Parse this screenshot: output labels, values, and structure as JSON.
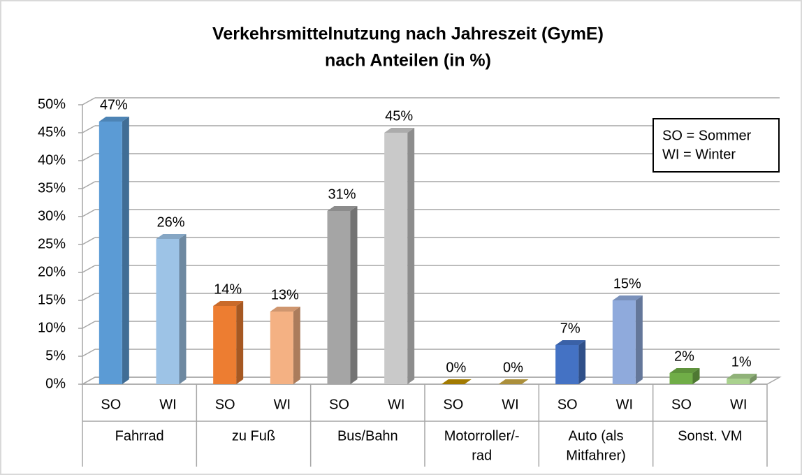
{
  "chart_data": {
    "type": "bar3d",
    "title": [
      "Verkehrsmittelnutzung nach Jahreszeit (GymE)",
      "nach Anteilen (in %)"
    ],
    "categories": [
      "SO",
      "WI",
      "SO",
      "WI",
      "SO",
      "WI",
      "SO",
      "WI",
      "SO",
      "WI",
      "SO",
      "WI"
    ],
    "groups": [
      [
        "Fahrrad"
      ],
      [
        "zu Fuß"
      ],
      [
        "Bus/Bahn"
      ],
      [
        "Motorroller/-",
        "rad"
      ],
      [
        "Auto (als",
        "Mitfahrer)"
      ],
      [
        "Sonst. VM"
      ]
    ],
    "values": [
      47,
      26,
      14,
      13,
      31,
      45,
      0,
      0,
      7,
      15,
      2,
      1
    ],
    "value_labels": [
      "47%",
      "26%",
      "14%",
      "13%",
      "31%",
      "45%",
      "0%",
      "0%",
      "7%",
      "15%",
      "2%",
      "1%"
    ],
    "colors": [
      "#5b9bd5",
      "#9dc3e6",
      "#ed7d31",
      "#f4b183",
      "#a5a5a5",
      "#c9c9c9",
      "#bf9000",
      "#c9a845",
      "#4472c4",
      "#8faadc",
      "#70ad47",
      "#a9d18e"
    ],
    "ylim": [
      0,
      50
    ],
    "yticks": [
      {
        "value": 0,
        "label": "0%"
      },
      {
        "value": 5,
        "label": "5%"
      },
      {
        "value": 10,
        "label": "10%"
      },
      {
        "value": 15,
        "label": "15%"
      },
      {
        "value": 20,
        "label": "20%"
      },
      {
        "value": 25,
        "label": "25%"
      },
      {
        "value": 30,
        "label": "30%"
      },
      {
        "value": 35,
        "label": "35%"
      },
      {
        "value": 40,
        "label": "40%"
      },
      {
        "value": 45,
        "label": "45%"
      },
      {
        "value": 50,
        "label": "50%"
      }
    ],
    "grid": true,
    "annotations": [
      "SO = Sommer",
      "WI = Winter"
    ]
  }
}
